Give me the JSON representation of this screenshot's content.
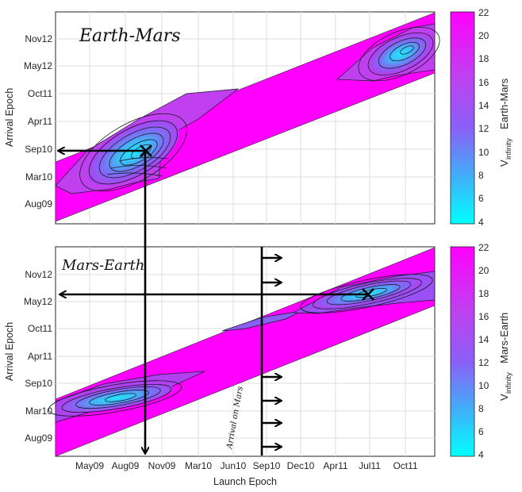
{
  "chart_data": [
    {
      "type": "contour",
      "panel": "top",
      "ylabel": "Arrival Epoch",
      "xlabel": "",
      "annotation": "Earth-Mars",
      "y_ticks": [
        "Nov12",
        "May12",
        "Oct11",
        "Apr11",
        "Sep10",
        "Mar10",
        "Aug09"
      ],
      "x_ticks": [
        "May09",
        "Aug09",
        "Nov09",
        "Mar10",
        "Jun10",
        "Sep10",
        "Dec10",
        "Apr11",
        "Jul11",
        "Oct11"
      ],
      "colorbar": {
        "label_main": "V",
        "label_sub": "infinity",
        "label_rest": "Earth-Mars",
        "range": [
          4,
          22
        ],
        "ticks": [
          "22",
          "20",
          "18",
          "16",
          "14",
          "12",
          "10",
          "8",
          "6",
          "4"
        ]
      },
      "minima": [
        {
          "launch": "Nov09",
          "arrival": "Sep10"
        },
        {
          "launch": "Oct11",
          "arrival": "Nov12"
        }
      ],
      "grid": true
    },
    {
      "type": "contour",
      "panel": "bottom",
      "ylabel": "Arrival Epoch",
      "xlabel": "Launch Epoch",
      "annotation": "Mars-Earth",
      "annotation2": "Arrival on Mars",
      "y_ticks": [
        "Nov12",
        "May12",
        "Oct11",
        "Apr11",
        "Sep10",
        "Mar10",
        "Aug09"
      ],
      "x_ticks": [
        "May09",
        "Aug09",
        "Nov09",
        "Mar10",
        "Jun10",
        "Sep10",
        "Dec10",
        "Apr11",
        "Jul11",
        "Oct11"
      ],
      "colorbar": {
        "label_main": "V",
        "label_sub": "infinity",
        "label_rest": "Mars-Earth",
        "range": [
          4,
          22
        ],
        "ticks": [
          "22",
          "20",
          "18",
          "16",
          "14",
          "12",
          "10",
          "8",
          "6",
          "4"
        ]
      },
      "minima": [
        {
          "launch": "Jul11",
          "arrival": "May12"
        }
      ],
      "grid": true
    }
  ],
  "colors": {
    "magenta": "#ff00ff",
    "cyan": "#00ffff",
    "arrow": "#000000"
  }
}
